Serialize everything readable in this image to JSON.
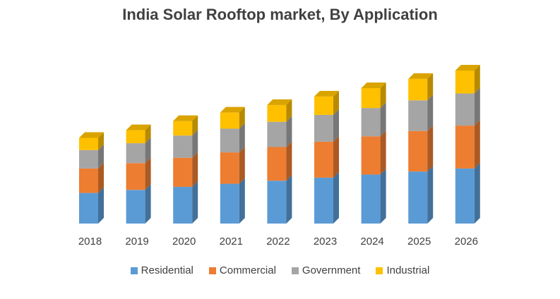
{
  "chart_data": {
    "type": "bar",
    "stacked": true,
    "style": "3d-column",
    "title": "India Solar Rooftop market, By Application",
    "xlabel": "",
    "ylabel": "",
    "categories": [
      "2018",
      "2019",
      "2020",
      "2021",
      "2022",
      "2023",
      "2024",
      "2025",
      "2026"
    ],
    "series": [
      {
        "name": "Residential",
        "color": "#5b9bd5",
        "values": [
          40,
          44,
          48,
          52,
          56,
          60,
          64,
          68,
          72
        ]
      },
      {
        "name": "Commercial",
        "color": "#ed7d31",
        "values": [
          32,
          35,
          38,
          41,
          44,
          47,
          50,
          53,
          56
        ]
      },
      {
        "name": "Government",
        "color": "#a5a5a5",
        "values": [
          24,
          26,
          29,
          31,
          33,
          35,
          37,
          40,
          42
        ]
      },
      {
        "name": "Industrial",
        "color": "#ffc000",
        "values": [
          16,
          17,
          19,
          21,
          22,
          24,
          26,
          28,
          30
        ]
      }
    ],
    "axes_visible": false,
    "grid": false,
    "legend_position": "bottom"
  }
}
